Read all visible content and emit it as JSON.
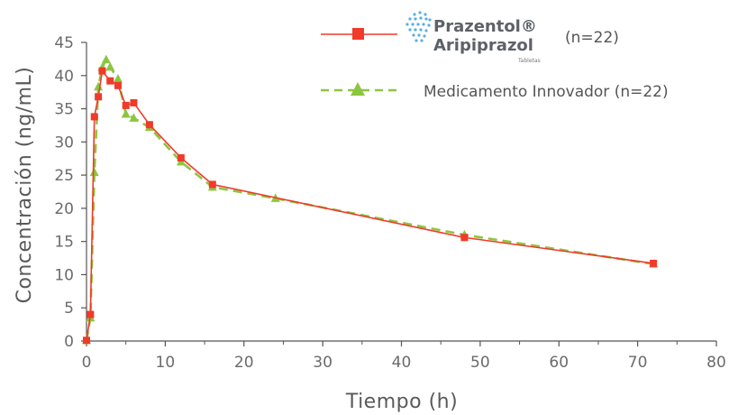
{
  "chart_data": {
    "type": "line",
    "xlabel": "Tiempo (h)",
    "ylabel": "Concentración (ng/mL)",
    "xlim": [
      0,
      80
    ],
    "ylim": [
      0,
      45
    ],
    "xticks": [
      0,
      10,
      20,
      30,
      40,
      50,
      60,
      70,
      80
    ],
    "yticks": [
      0,
      5,
      10,
      15,
      20,
      25,
      30,
      35,
      40,
      45
    ],
    "grid": false,
    "legend_position": "top-right",
    "series": [
      {
        "name": "Prazentol® Aripiprazol (n=22)",
        "marker": "square",
        "line_style": "solid",
        "color": "#f03a2a",
        "x": [
          0,
          0.5,
          1,
          1.5,
          2,
          3,
          4,
          5,
          6,
          8,
          12,
          16,
          48,
          72
        ],
        "y": [
          0.1,
          4.0,
          33.8,
          36.8,
          40.7,
          39.2,
          38.5,
          35.5,
          35.9,
          32.6,
          27.6,
          23.6,
          15.6,
          11.7
        ]
      },
      {
        "name": "Medicamento Innovador (n=22)",
        "marker": "triangle",
        "line_style": "dashed",
        "color": "#8cc63f",
        "x": [
          0,
          0.5,
          1,
          1.5,
          2,
          2.5,
          3,
          4,
          5,
          6,
          8,
          12,
          16,
          24,
          48,
          72
        ],
        "y": [
          0.1,
          3.5,
          25.4,
          38.3,
          41.2,
          42.4,
          41.3,
          39.5,
          34.2,
          33.6,
          32.2,
          27.0,
          23.2,
          21.5,
          16.0,
          11.6
        ]
      }
    ]
  },
  "legend": {
    "brand_name": "Prazentol®",
    "brand_generic": "Aripiprazol",
    "brand_form": "Tabletas",
    "brand_n": "(n=22)",
    "innovator_label": "Medicamento Innovador (n=22)"
  }
}
